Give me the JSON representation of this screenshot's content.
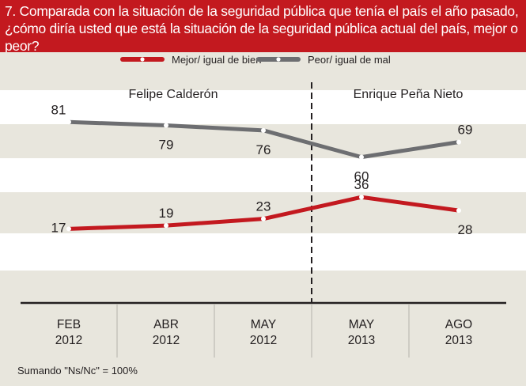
{
  "question": "7. Comparada con la situación de la seguridad pública que tenía el país el año pasado, ¿cómo diría usted que está la situación de la seguridad pública actual  del país, mejor o peor?",
  "footnote": "Sumando \"Ns/Nc\" = 100%",
  "colors": {
    "header": "#c3191f",
    "series_mejor": "#c3191f",
    "series_peor": "#6d6e71",
    "band_light": "#ffffff",
    "band_dark": "#e8e6dd"
  },
  "chart_data": {
    "type": "line",
    "categories": [
      [
        "FEB",
        "2012"
      ],
      [
        "ABR",
        "2012"
      ],
      [
        "MAY",
        "2012"
      ],
      [
        "MAY",
        "2013"
      ],
      [
        "AGO",
        "2013"
      ]
    ],
    "series": [
      {
        "name": "Mejor/ igual de bien",
        "color": "#c3191f",
        "values": [
          17,
          19,
          23,
          36,
          28
        ]
      },
      {
        "name": "Peor/ igual de mal",
        "color": "#6d6e71",
        "values": [
          81,
          79,
          76,
          60,
          69
        ]
      }
    ],
    "periods": [
      {
        "label": "Felipe Calderón",
        "categories": [
          0,
          1,
          2
        ]
      },
      {
        "label": "Enrique Peña Nieto",
        "categories": [
          3,
          4
        ]
      }
    ],
    "divider_between": [
      2,
      3
    ],
    "legend_position": "top-center",
    "grid": false,
    "title": "",
    "xlabel": "",
    "ylabel": ""
  }
}
